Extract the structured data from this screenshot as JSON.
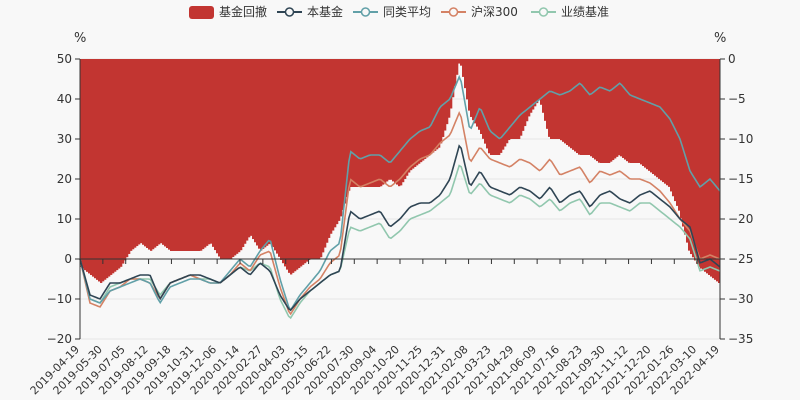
{
  "chart_data": {
    "type": "line",
    "left_unit": "%",
    "right_unit": "%",
    "legend": [
      {
        "key": "drawdown",
        "label": "基金回撤",
        "color": "#c23531",
        "kind": "bar"
      },
      {
        "key": "fund",
        "label": "本基金",
        "color": "#2f4554",
        "kind": "line"
      },
      {
        "key": "peer",
        "label": "同类平均",
        "color": "#61a0a8",
        "kind": "line"
      },
      {
        "key": "hs300",
        "label": "沪深300",
        "color": "#d48265",
        "kind": "line"
      },
      {
        "key": "bench",
        "label": "业绩基准",
        "color": "#91c7ae",
        "kind": "line"
      }
    ],
    "left_axis": {
      "min": -20,
      "max": 50,
      "ticks": [
        -20,
        -10,
        0,
        10,
        20,
        30,
        40,
        50
      ]
    },
    "right_axis": {
      "min": -35,
      "max": 0,
      "ticks": [
        -35,
        -30,
        -25,
        -20,
        -15,
        -10,
        -5,
        0
      ]
    },
    "x_tick_labels": [
      "2019-04-19",
      "2019-05-30",
      "2019-07-05",
      "2019-08-12",
      "2019-09-18",
      "2019-10-31",
      "2019-12-06",
      "2020-01-14",
      "2020-02-27",
      "2020-04-03",
      "2020-05-15",
      "2020-06-22",
      "2020-07-30",
      "2020-09-04",
      "2020-10-20",
      "2020-11-25",
      "2020-12-31",
      "2021-02-08",
      "2021-03-23",
      "2021-04-29",
      "2021-06-09",
      "2021-07-16",
      "2021-08-23",
      "2021-09-30",
      "2021-11-12",
      "2021-12-20",
      "2022-01-26",
      "2022-03-10",
      "2022-04-19"
    ],
    "series": [
      {
        "key": "fund",
        "name": "本基金",
        "values": [
          0,
          -9,
          -10,
          -6,
          -6,
          -5,
          -4,
          -4,
          -10,
          -6,
          -5,
          -4,
          -4,
          -5,
          -6,
          -4,
          -2,
          -4,
          -1,
          -3,
          -9,
          -13,
          -10,
          -8,
          -6,
          -4,
          -3,
          12,
          10,
          11,
          12,
          8,
          10,
          13,
          14,
          14,
          16,
          20,
          29,
          18,
          22,
          18,
          17,
          16,
          18,
          17,
          15,
          18,
          14,
          16,
          17,
          13,
          16,
          17,
          15,
          14,
          16,
          17,
          15,
          13,
          10,
          8,
          -1,
          0,
          -2
        ]
      },
      {
        "key": "peer",
        "name": "同类平均",
        "values": [
          0,
          -10,
          -11,
          -8,
          -7,
          -6,
          -5,
          -6,
          -11,
          -7,
          -6,
          -5,
          -5,
          -6,
          -6,
          -3,
          0,
          -2,
          2,
          5,
          -5,
          -13,
          -9,
          -6,
          -3,
          2,
          4,
          27,
          25,
          26,
          26,
          24,
          27,
          30,
          32,
          33,
          38,
          40,
          46,
          32,
          38,
          32,
          30,
          33,
          36,
          38,
          40,
          42,
          41,
          42,
          44,
          41,
          43,
          42,
          44,
          41,
          40,
          39,
          38,
          35,
          30,
          22,
          18,
          20,
          17
        ]
      },
      {
        "key": "hs300",
        "name": "沪深300",
        "values": [
          0,
          -11,
          -12,
          -8,
          -7,
          -5,
          -5,
          -6,
          -10,
          -6,
          -5,
          -4,
          -5,
          -6,
          -6,
          -4,
          -1,
          -3,
          1,
          2,
          -7,
          -14,
          -10,
          -7,
          -5,
          -1,
          1,
          20,
          18,
          19,
          20,
          18,
          20,
          23,
          25,
          26,
          29,
          31,
          37,
          24,
          28,
          25,
          24,
          23,
          25,
          24,
          22,
          25,
          21,
          22,
          23,
          19,
          22,
          21,
          22,
          20,
          20,
          19,
          17,
          14,
          10,
          7,
          0,
          1,
          0
        ]
      },
      {
        "key": "bench",
        "name": "业绩基准",
        "values": [
          0,
          -10,
          -11,
          -7,
          -6,
          -5,
          -5,
          -5,
          -9,
          -6,
          -5,
          -4,
          -5,
          -5,
          -6,
          -4,
          -2,
          -3,
          -1,
          -2,
          -10,
          -15,
          -11,
          -8,
          -6,
          -4,
          -3,
          8,
          7,
          8,
          9,
          5,
          7,
          10,
          11,
          12,
          14,
          16,
          24,
          16,
          19,
          16,
          15,
          14,
          16,
          15,
          13,
          15,
          12,
          14,
          15,
          11,
          14,
          14,
          13,
          12,
          14,
          14,
          12,
          10,
          8,
          5,
          -3,
          -2,
          -3
        ]
      },
      {
        "key": "drawdown",
        "name": "基金回撤",
        "values": [
          -26,
          -27,
          -28,
          -27,
          -26,
          -24,
          -23,
          -24,
          -23,
          -24,
          -24,
          -24,
          -24,
          -23,
          -25,
          -25,
          -24,
          -22,
          -24,
          -23,
          -25,
          -27,
          -26,
          -25,
          -25,
          -22,
          -20,
          -16,
          -16,
          -16,
          -16,
          -15,
          -16,
          -14,
          -13,
          -12,
          -11,
          -7,
          0,
          -7,
          -9,
          -12,
          -12,
          -10,
          -10,
          -7,
          -5,
          -10,
          -10,
          -11,
          -12,
          -12,
          -13,
          -13,
          -12,
          -13,
          -13,
          -14,
          -15,
          -16,
          -19,
          -24,
          -26,
          -27,
          -28
        ]
      }
    ]
  }
}
